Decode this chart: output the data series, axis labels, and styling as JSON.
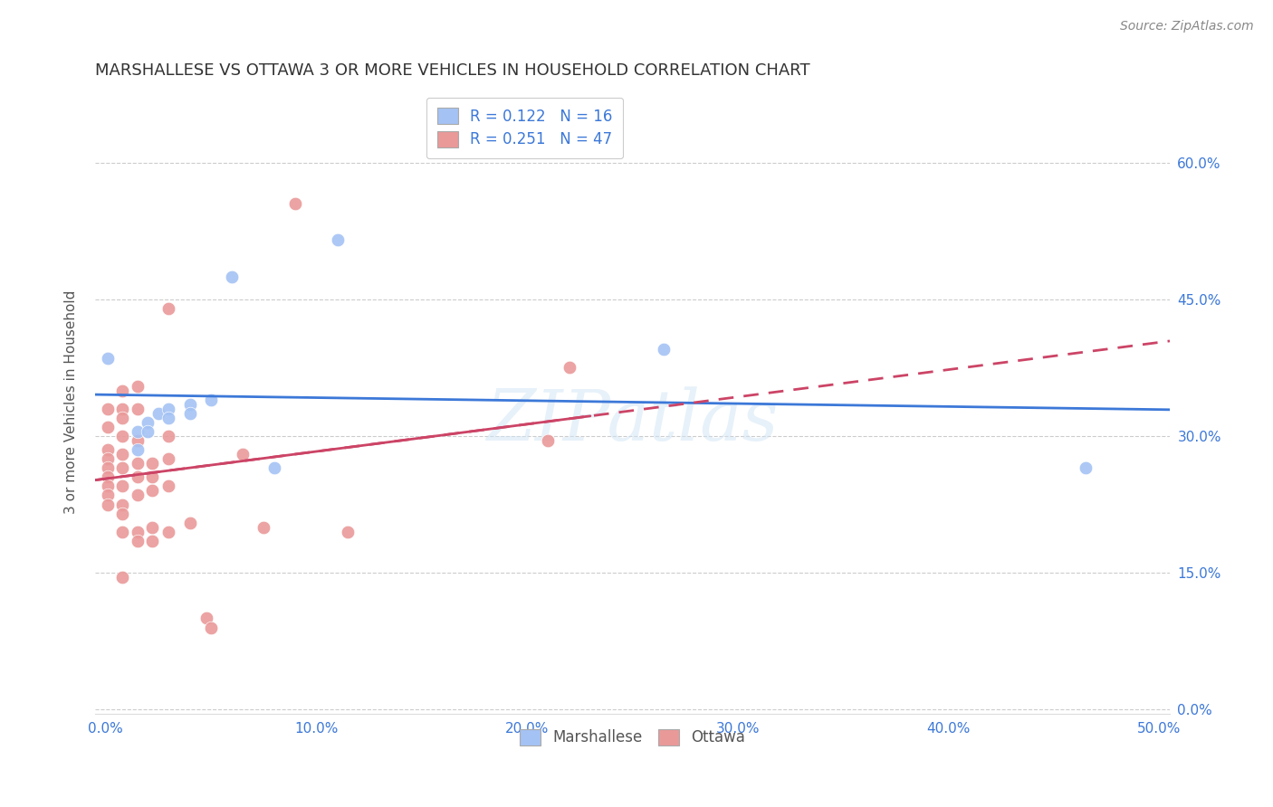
{
  "title": "MARSHALLESE VS OTTAWA 3 OR MORE VEHICLES IN HOUSEHOLD CORRELATION CHART",
  "source": "Source: ZipAtlas.com",
  "xlabel_ticks": [
    "0.0%",
    "10.0%",
    "20.0%",
    "30.0%",
    "40.0%",
    "50.0%"
  ],
  "xlabel_vals": [
    0.0,
    0.1,
    0.2,
    0.3,
    0.4,
    0.5
  ],
  "ylabel_ticks": [
    "0.0%",
    "15.0%",
    "30.0%",
    "45.0%",
    "60.0%"
  ],
  "ylabel_vals": [
    0.0,
    0.15,
    0.3,
    0.45,
    0.6
  ],
  "ylabel_label": "3 or more Vehicles in Household",
  "xlim": [
    -0.005,
    0.505
  ],
  "ylim": [
    -0.005,
    0.68
  ],
  "watermark": "ZIPatlas",
  "legend_labels": [
    "Marshallese",
    "Ottawa"
  ],
  "blue_R": 0.122,
  "blue_N": 16,
  "pink_R": 0.251,
  "pink_N": 47,
  "blue_color": "#a4c2f4",
  "pink_color": "#ea9999",
  "blue_line_color": "#3c78d8",
  "pink_line_color": "#cc4466",
  "blue_scatter": [
    [
      0.001,
      0.385
    ],
    [
      0.015,
      0.305
    ],
    [
      0.015,
      0.285
    ],
    [
      0.02,
      0.315
    ],
    [
      0.02,
      0.305
    ],
    [
      0.025,
      0.325
    ],
    [
      0.03,
      0.33
    ],
    [
      0.03,
      0.32
    ],
    [
      0.04,
      0.335
    ],
    [
      0.04,
      0.325
    ],
    [
      0.05,
      0.34
    ],
    [
      0.06,
      0.475
    ],
    [
      0.08,
      0.265
    ],
    [
      0.11,
      0.515
    ],
    [
      0.265,
      0.395
    ],
    [
      0.465,
      0.265
    ]
  ],
  "pink_scatter": [
    [
      0.001,
      0.33
    ],
    [
      0.001,
      0.31
    ],
    [
      0.001,
      0.285
    ],
    [
      0.001,
      0.275
    ],
    [
      0.001,
      0.265
    ],
    [
      0.001,
      0.255
    ],
    [
      0.001,
      0.245
    ],
    [
      0.001,
      0.235
    ],
    [
      0.001,
      0.225
    ],
    [
      0.008,
      0.35
    ],
    [
      0.008,
      0.33
    ],
    [
      0.008,
      0.32
    ],
    [
      0.008,
      0.3
    ],
    [
      0.008,
      0.28
    ],
    [
      0.008,
      0.265
    ],
    [
      0.008,
      0.245
    ],
    [
      0.008,
      0.225
    ],
    [
      0.008,
      0.215
    ],
    [
      0.008,
      0.195
    ],
    [
      0.008,
      0.145
    ],
    [
      0.015,
      0.355
    ],
    [
      0.015,
      0.33
    ],
    [
      0.015,
      0.295
    ],
    [
      0.015,
      0.27
    ],
    [
      0.015,
      0.255
    ],
    [
      0.015,
      0.235
    ],
    [
      0.015,
      0.195
    ],
    [
      0.015,
      0.185
    ],
    [
      0.022,
      0.27
    ],
    [
      0.022,
      0.255
    ],
    [
      0.022,
      0.24
    ],
    [
      0.022,
      0.2
    ],
    [
      0.022,
      0.185
    ],
    [
      0.03,
      0.44
    ],
    [
      0.03,
      0.3
    ],
    [
      0.03,
      0.275
    ],
    [
      0.03,
      0.245
    ],
    [
      0.03,
      0.195
    ],
    [
      0.04,
      0.205
    ],
    [
      0.048,
      0.1
    ],
    [
      0.05,
      0.09
    ],
    [
      0.065,
      0.28
    ],
    [
      0.075,
      0.2
    ],
    [
      0.09,
      0.555
    ],
    [
      0.115,
      0.195
    ],
    [
      0.21,
      0.295
    ],
    [
      0.22,
      0.375
    ]
  ],
  "title_fontsize": 13,
  "source_fontsize": 10,
  "tick_fontsize": 11,
  "ylabel_fontsize": 11,
  "legend_fontsize": 12,
  "scatter_size": 110,
  "line_width": 2.0
}
